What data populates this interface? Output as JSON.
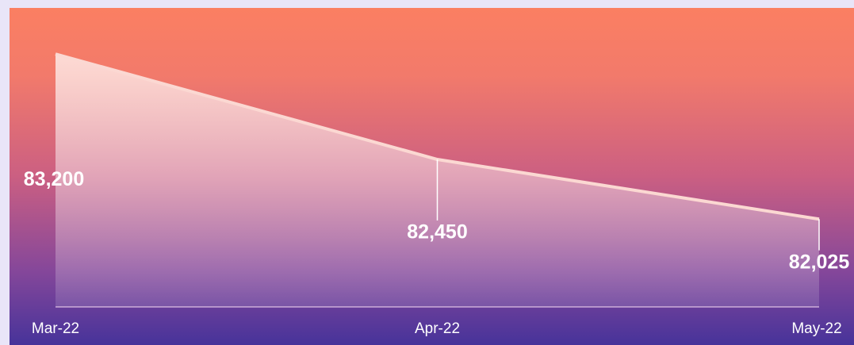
{
  "chart_data": {
    "type": "area",
    "categories": [
      "Mar-22",
      "Apr-22",
      "May-22"
    ],
    "values": [
      83200,
      82450,
      82025
    ],
    "value_labels": [
      "83,200",
      "82,450",
      "82,025"
    ],
    "ylim": [
      81400,
      83500
    ]
  }
}
